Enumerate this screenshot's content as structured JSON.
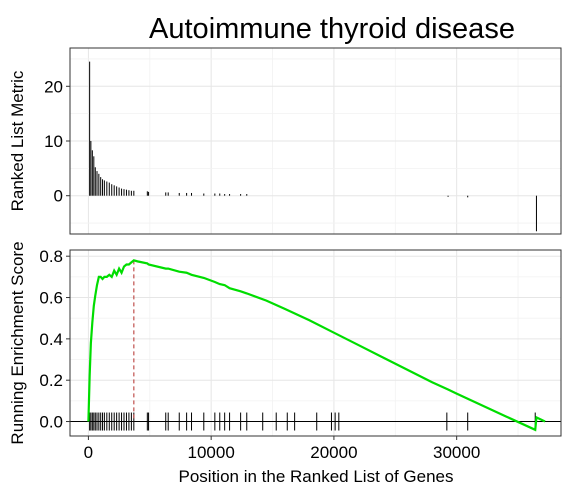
{
  "chart_data": {
    "type": "line",
    "title": "Autoimmune thyroid disease",
    "xlabel": "Position in the Ranked List of Genes",
    "xlim": [
      -1500,
      38500
    ],
    "x_ticks": [
      0,
      10000,
      20000,
      30000
    ],
    "x_tick_labels": [
      "0",
      "10000",
      "20000",
      "30000"
    ],
    "grid": true,
    "panels": [
      {
        "name": "ranked-list-metric",
        "type": "bar",
        "ylabel": "Ranked List Metric",
        "ylim": [
          -7,
          27
        ],
        "y_ticks": [
          0,
          10,
          20
        ],
        "y_tick_labels": [
          "0",
          "10",
          "20"
        ],
        "x": [
          100,
          200,
          320,
          440,
          560,
          700,
          850,
          1000,
          1150,
          1300,
          1500,
          1700,
          1900,
          2100,
          2300,
          2500,
          2700,
          2900,
          3100,
          3300,
          3500,
          3700,
          4800,
          4900,
          6300,
          6500,
          7400,
          8000,
          8400,
          9400,
          10300,
          10700,
          11100,
          11500,
          12400,
          12900,
          29300,
          30900,
          36500
        ],
        "values": [
          24.5,
          10.0,
          8.3,
          7.2,
          5.2,
          4.5,
          4.0,
          3.4,
          3.0,
          2.8,
          2.6,
          2.4,
          2.1,
          1.9,
          1.7,
          1.5,
          1.3,
          1.2,
          1.1,
          1.0,
          0.9,
          0.9,
          0.8,
          0.7,
          0.6,
          0.6,
          0.5,
          0.5,
          0.5,
          0.4,
          0.4,
          0.4,
          0.3,
          0.3,
          0.3,
          0.3,
          -0.2,
          -0.3,
          -6.5
        ]
      },
      {
        "name": "running-enrichment-score",
        "type": "line",
        "ylabel": "Running Enrichment Score",
        "ylim": [
          -0.07,
          0.83
        ],
        "y_ticks": [
          0.0,
          0.2,
          0.4,
          0.6,
          0.8
        ],
        "y_tick_labels": [
          "0.0",
          "0.2",
          "0.4",
          "0.6",
          "0.8"
        ],
        "line_color": "#00dd00",
        "x": [
          0,
          100,
          200,
          320,
          440,
          560,
          700,
          850,
          1000,
          1150,
          1300,
          1500,
          1700,
          1900,
          2100,
          2300,
          2500,
          2700,
          2900,
          3100,
          3300,
          3500,
          3700,
          4000,
          4800,
          4900,
          6300,
          6500,
          7400,
          8000,
          8400,
          9400,
          10300,
          10700,
          11100,
          11500,
          12400,
          12900,
          14500,
          16000,
          18000,
          20000,
          22000,
          24000,
          26000,
          28000,
          29300,
          30000,
          30900,
          32000,
          34000,
          36400,
          36500,
          37200
        ],
        "values": [
          0.0,
          0.22,
          0.38,
          0.48,
          0.56,
          0.61,
          0.66,
          0.7,
          0.7,
          0.69,
          0.7,
          0.7,
          0.71,
          0.7,
          0.73,
          0.71,
          0.74,
          0.72,
          0.75,
          0.76,
          0.76,
          0.77,
          0.78,
          0.775,
          0.765,
          0.76,
          0.74,
          0.74,
          0.725,
          0.72,
          0.71,
          0.695,
          0.675,
          0.665,
          0.66,
          0.645,
          0.63,
          0.62,
          0.585,
          0.545,
          0.49,
          0.43,
          0.37,
          0.31,
          0.25,
          0.19,
          0.155,
          0.135,
          0.11,
          0.08,
          0.025,
          -0.04,
          0.02,
          0.0
        ],
        "peak_x": 3700,
        "peak_value": 0.78,
        "peak_line_color": "#c0504d",
        "gene_hits": [
          100,
          200,
          320,
          440,
          560,
          700,
          850,
          1000,
          1150,
          1300,
          1500,
          1700,
          1900,
          2100,
          2300,
          2500,
          2700,
          2900,
          3100,
          3300,
          3500,
          3700,
          4800,
          4900,
          6300,
          6500,
          7400,
          8000,
          8400,
          9400,
          10300,
          10700,
          11100,
          11500,
          12400,
          12900,
          14200,
          15300,
          16200,
          16800,
          18600,
          19800,
          20100,
          20400,
          29200,
          30900,
          36400
        ]
      }
    ]
  }
}
